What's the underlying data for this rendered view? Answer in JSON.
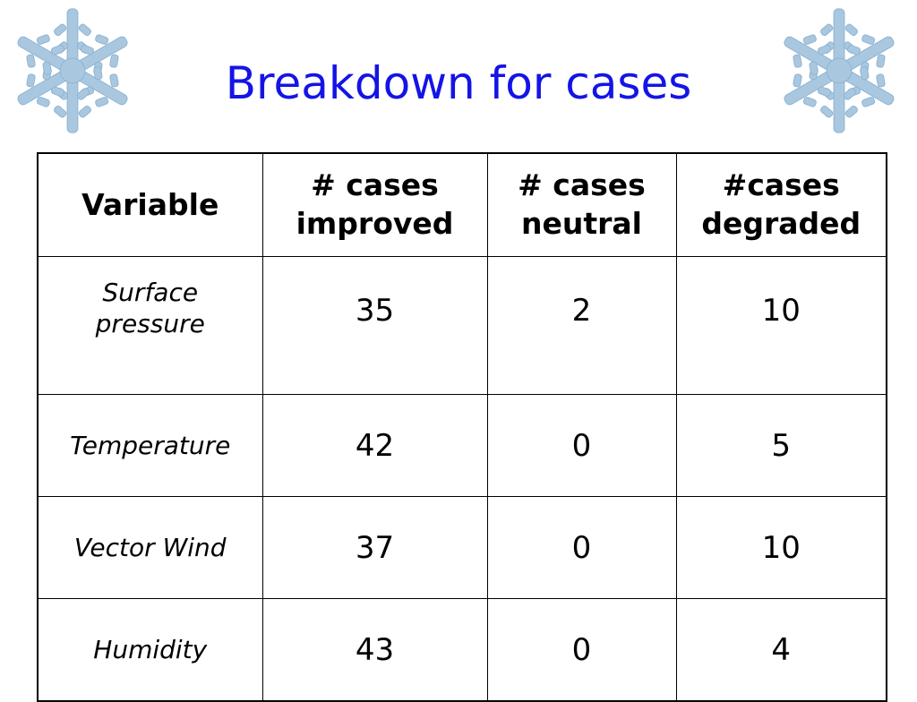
{
  "title": "Breakdown for cases",
  "table": {
    "headers": [
      {
        "line1": "Variable",
        "line2": ""
      },
      {
        "line1": "# cases",
        "line2": "improved"
      },
      {
        "line1": "# cases",
        "line2": "neutral"
      },
      {
        "line1": "#cases",
        "line2": "degraded"
      }
    ],
    "rows": [
      {
        "variable_line1": "Surface",
        "variable_line2": "pressure",
        "improved": "35",
        "neutral": "2",
        "degraded": "10"
      },
      {
        "variable_line1": "Temperature",
        "variable_line2": "",
        "improved": "42",
        "neutral": "0",
        "degraded": "5"
      },
      {
        "variable_line1": "Vector Wind",
        "variable_line2": "",
        "improved": "37",
        "neutral": "0",
        "degraded": "10"
      },
      {
        "variable_line1": "Humidity",
        "variable_line2": "",
        "improved": "43",
        "neutral": "0",
        "degraded": "4"
      }
    ]
  },
  "decorations": {
    "left_icon": "snowflake-icon",
    "right_icon": "snowflake-icon",
    "snowflake_color": "#a9c8e0",
    "title_color": "#1414e6"
  }
}
